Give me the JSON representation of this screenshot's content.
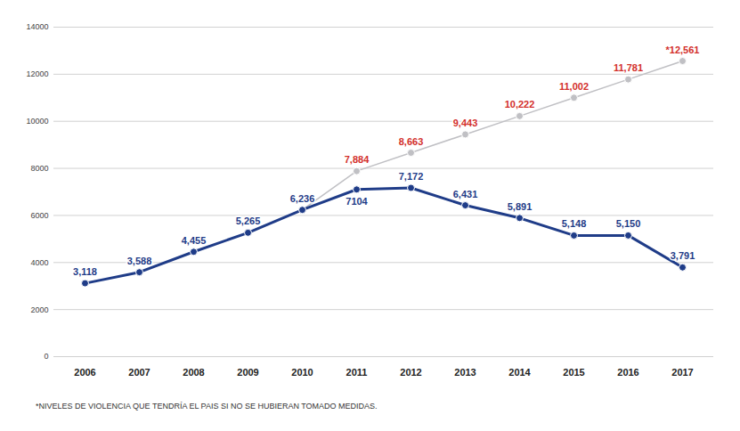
{
  "chart_data": {
    "type": "line",
    "categories": [
      "2006",
      "2007",
      "2008",
      "2009",
      "2010",
      "2011",
      "2012",
      "2013",
      "2014",
      "2015",
      "2016",
      "2017"
    ],
    "series": [
      {
        "color": "#c0c0c4",
        "marker": "circle",
        "values": [
          null,
          null,
          null,
          null,
          6236,
          7884,
          8663,
          9443,
          10222,
          11002,
          11781,
          12561
        ],
        "value_labels": [
          null,
          null,
          null,
          null,
          null,
          "7,884",
          "8,663",
          "9,443",
          "10,222",
          "11,002",
          "11,781",
          "*12,561"
        ]
      },
      {
        "color": "#1f3c88",
        "marker": "circle",
        "values": [
          3118,
          3588,
          4455,
          5265,
          6236,
          7104,
          7172,
          6431,
          5891,
          5148,
          5150,
          3791
        ],
        "value_labels": [
          "3,118",
          "3,588",
          "4,455",
          "5,265",
          "6,236",
          "7104",
          "7,172",
          "6,431",
          "5,891",
          "5,148",
          "5,150",
          "3,791"
        ]
      }
    ],
    "ylim": [
      0,
      14000
    ],
    "yticks": [
      0,
      2000,
      4000,
      6000,
      8000,
      10000,
      12000,
      14000
    ],
    "grid": true,
    "data_labels": true,
    "footnote": "*NIVELES DE VIOLENCIA QUE TENDRÍA EL PAIS SI NO SE HUBIERAN TOMADO MEDIDAS."
  }
}
